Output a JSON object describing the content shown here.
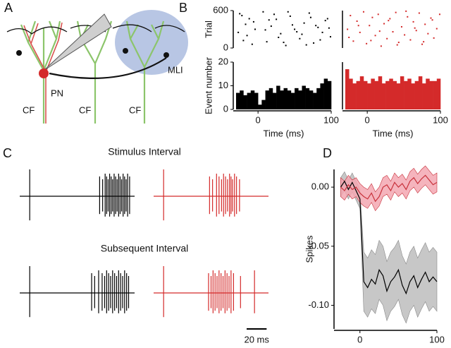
{
  "panels": [
    "A",
    "B",
    "C",
    "D"
  ],
  "diagram": {
    "labels": [
      "PN",
      "CF",
      "CF",
      "CF",
      "MLI"
    ]
  },
  "chart_data": [
    {
      "type": "raster",
      "ylabel": "Trial",
      "color": "#000000",
      "xlim": [
        -30,
        100
      ],
      "ylim": [
        0,
        600
      ],
      "yticks": [
        0,
        600
      ],
      "x": [
        -25,
        -20,
        -17,
        -12,
        -8,
        -4,
        -27,
        -22,
        -15,
        -6,
        7,
        12,
        18,
        25,
        31,
        38,
        44,
        50,
        57,
        63,
        70,
        76,
        82,
        88,
        95,
        99,
        10,
        22,
        35,
        47,
        60,
        72,
        85,
        97,
        15,
        28,
        41,
        53,
        66,
        79,
        92
      ],
      "y": [
        550,
        120,
        380,
        470,
        60,
        300,
        250,
        520,
        200,
        420,
        580,
        100,
        350,
        460,
        230,
        40,
        510,
        300,
        150,
        400,
        560,
        80,
        330,
        250,
        470,
        180,
        290,
        540,
        90,
        370,
        220,
        490,
        130,
        320,
        450,
        170,
        580,
        260,
        50,
        360,
        440
      ]
    },
    {
      "type": "raster",
      "color": "#d42a2a",
      "xlim": [
        -30,
        100
      ],
      "ylim": [
        0,
        600
      ],
      "x": [
        -27,
        -23,
        -19,
        -14,
        -10,
        -5,
        -1,
        3,
        7,
        11,
        15,
        19,
        23,
        27,
        31,
        35,
        39,
        43,
        47,
        51,
        55,
        59,
        63,
        67,
        71,
        75,
        79,
        83,
        87,
        91,
        95,
        99,
        -25,
        -12,
        5,
        17,
        29,
        41,
        53,
        65,
        77,
        89
      ],
      "y": [
        300,
        520,
        110,
        430,
        250,
        580,
        70,
        360,
        490,
        200,
        540,
        30,
        390,
        150,
        470,
        260,
        570,
        90,
        340,
        210,
        500,
        130,
        420,
        280,
        560,
        60,
        380,
        230,
        480,
        160,
        310,
        540,
        170,
        360,
        120,
        270,
        440,
        50,
        590,
        320,
        100,
        450
      ]
    },
    {
      "type": "histogram",
      "ylabel": "Event number",
      "xlabel": "Time (ms)",
      "color": "#000000",
      "xlim": [
        -30,
        100
      ],
      "ylim": [
        0,
        20
      ],
      "yticks": [
        0,
        10,
        20
      ],
      "xticks": [
        0,
        100
      ],
      "bins": [
        -30,
        -25,
        -20,
        -15,
        -10,
        -5,
        0,
        5,
        10,
        15,
        20,
        25,
        30,
        35,
        40,
        45,
        50,
        55,
        60,
        65,
        70,
        75,
        80,
        85,
        90,
        95,
        100
      ],
      "values": [
        7,
        8,
        6,
        7,
        8,
        7,
        2,
        4,
        8,
        9,
        7,
        10,
        8,
        9,
        8,
        7,
        9,
        8,
        10,
        9,
        8,
        7,
        9,
        11,
        13,
        12
      ]
    },
    {
      "type": "histogram",
      "xlabel": "Time (ms)",
      "color": "#d42a2a",
      "xlim": [
        -30,
        100
      ],
      "ylim": [
        0,
        20
      ],
      "xticks": [
        0,
        100
      ],
      "bins": [
        -30,
        -25,
        -20,
        -15,
        -10,
        -5,
        0,
        5,
        10,
        15,
        20,
        25,
        30,
        35,
        40,
        45,
        50,
        55,
        60,
        65,
        70,
        75,
        80,
        85,
        90,
        95,
        100
      ],
      "values": [
        17,
        13,
        11,
        12,
        14,
        12,
        11,
        13,
        12,
        14,
        11,
        12,
        13,
        12,
        11,
        14,
        12,
        13,
        11,
        12,
        14,
        11,
        13,
        12,
        12,
        13
      ]
    },
    {
      "type": "trace",
      "xlim": [
        0,
        115
      ],
      "scalebar": {
        "value": 20,
        "label": "20 ms"
      },
      "rows": [
        {
          "title": "Stimulus Interval",
          "traces": [
            {
              "color": "#000000",
              "spikes": [
                10,
                80,
                83,
                85.5,
                87,
                88.5,
                90,
                91.5,
                93,
                94.5,
                96,
                97.5,
                99,
                100.5,
                102,
                103.5,
                105,
                106.5,
                108,
                110
              ]
            },
            {
              "color": "#d42a2a",
              "spikes": [
                10,
                56,
                59,
                63,
                65.5,
                68,
                70,
                72,
                74,
                76,
                77.5,
                79,
                81,
                83,
                86
              ]
            }
          ]
        },
        {
          "title": "Subsequent Interval",
          "traces": [
            {
              "color": "#000000",
              "spikes": [
                10,
                72,
                75,
                79,
                82.5,
                85,
                87,
                89,
                91,
                93,
                95,
                97,
                99,
                101,
                103,
                105,
                107,
                109
              ]
            },
            {
              "color": "#d42a2a",
              "spikes": [
                10,
                55,
                57.5,
                59.5,
                61.5,
                63.5,
                65.5,
                67.5,
                69.5,
                71.5,
                73.5,
                75.5,
                77.5,
                80,
                87,
                101
              ]
            }
          ]
        }
      ]
    },
    {
      "type": "line",
      "ylabel": "Spikes",
      "xlabel": "Time (ms)",
      "xlim": [
        -30,
        100
      ],
      "ylim": [
        -0.12,
        0.015
      ],
      "xticks": [
        0,
        100
      ],
      "yticks": [
        {
          "value": 0,
          "label": "0.00"
        },
        {
          "value": -0.05,
          "label": "-0.05"
        },
        {
          "value": -0.1,
          "label": "-0.10"
        }
      ],
      "x": [
        -25,
        -20,
        -15,
        -10,
        -5,
        0,
        5,
        10,
        15,
        20,
        25,
        30,
        35,
        40,
        45,
        50,
        55,
        60,
        65,
        70,
        75,
        80,
        85,
        90,
        95,
        100
      ],
      "series": [
        {
          "color": "#000000",
          "band_color": "#bdbdbd",
          "values": [
            0.0,
            0.005,
            -0.002,
            0.004,
            -0.003,
            -0.01,
            -0.08,
            -0.085,
            -0.078,
            -0.082,
            -0.07,
            -0.075,
            -0.088,
            -0.08,
            -0.076,
            -0.07,
            -0.083,
            -0.09,
            -0.08,
            -0.075,
            -0.085,
            -0.078,
            -0.072,
            -0.08,
            -0.076,
            -0.08
          ],
          "errors": [
            0.008,
            0.008,
            0.008,
            0.008,
            0.008,
            0.008,
            0.025,
            0.025,
            0.025,
            0.025,
            0.025,
            0.025,
            0.025,
            0.025,
            0.025,
            0.025,
            0.025,
            0.025,
            0.025,
            0.025,
            0.025,
            0.025,
            0.025,
            0.025,
            0.025,
            0.025
          ]
        },
        {
          "color": "#c8323c",
          "band_color": "#f3a7b2",
          "values": [
            0.0,
            -0.003,
            0.002,
            -0.002,
            0.0,
            -0.005,
            -0.008,
            -0.01,
            -0.005,
            -0.012,
            -0.008,
            0.0,
            0.002,
            -0.003,
            0.004,
            0.0,
            0.003,
            -0.002,
            0.005,
            0.008,
            0.003,
            0.007,
            0.01,
            0.006,
            0.002,
            0.004
          ],
          "errors": [
            0.008,
            0.008,
            0.008,
            0.008,
            0.008,
            0.008,
            0.008,
            0.008,
            0.008,
            0.008,
            0.008,
            0.008,
            0.008,
            0.008,
            0.008,
            0.008,
            0.008,
            0.008,
            0.008,
            0.008,
            0.008,
            0.008,
            0.008,
            0.008,
            0.008,
            0.008
          ]
        }
      ]
    }
  ]
}
